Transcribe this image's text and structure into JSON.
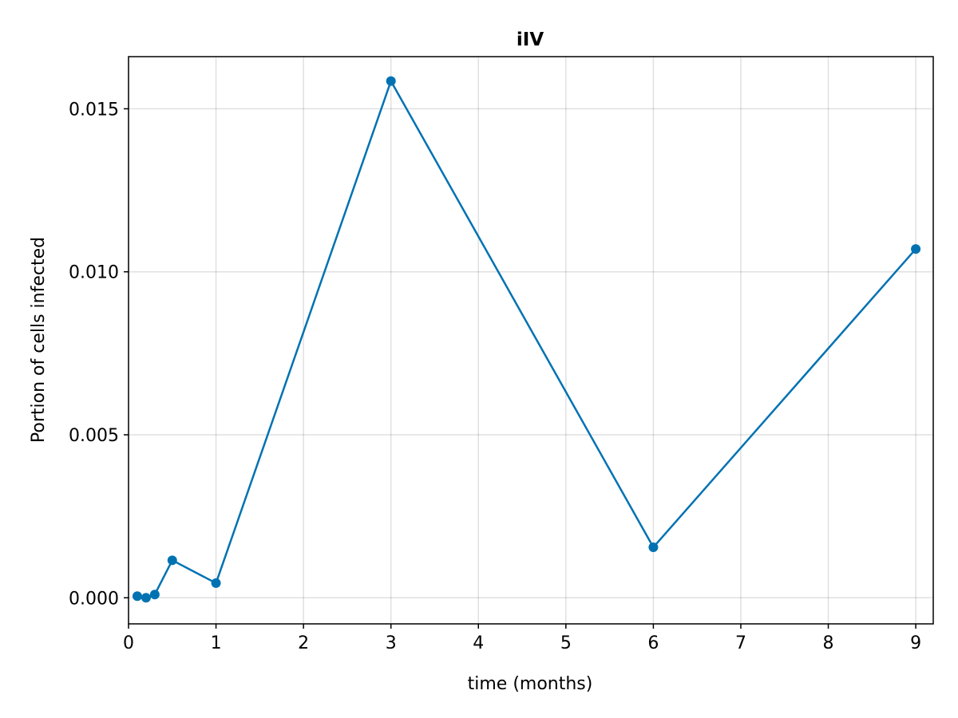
{
  "chart_data": {
    "type": "line",
    "title": "iIV",
    "xlabel": "time (months)",
    "ylabel": "Portion of cells infected",
    "xlim": [
      0,
      9.2
    ],
    "ylim": [
      -0.0008,
      0.0166
    ],
    "x_ticks": [
      0,
      1,
      2,
      3,
      4,
      5,
      6,
      7,
      8,
      9
    ],
    "x_tick_labels": [
      "0",
      "1",
      "2",
      "3",
      "4",
      "5",
      "6",
      "7",
      "8",
      "9"
    ],
    "y_ticks": [
      0.0,
      0.005,
      0.01,
      0.015
    ],
    "y_tick_labels": [
      "0.000",
      "0.005",
      "0.010",
      "0.015"
    ],
    "grid": true,
    "color": "#0072B2",
    "series": [
      {
        "x": [
          0.1,
          0.2,
          0.3,
          0.5,
          1,
          3,
          6,
          9
        ],
        "y": [
          5e-05,
          0.0,
          0.0001,
          0.00115,
          0.00045,
          0.01585,
          0.00155,
          0.0107
        ]
      }
    ]
  }
}
